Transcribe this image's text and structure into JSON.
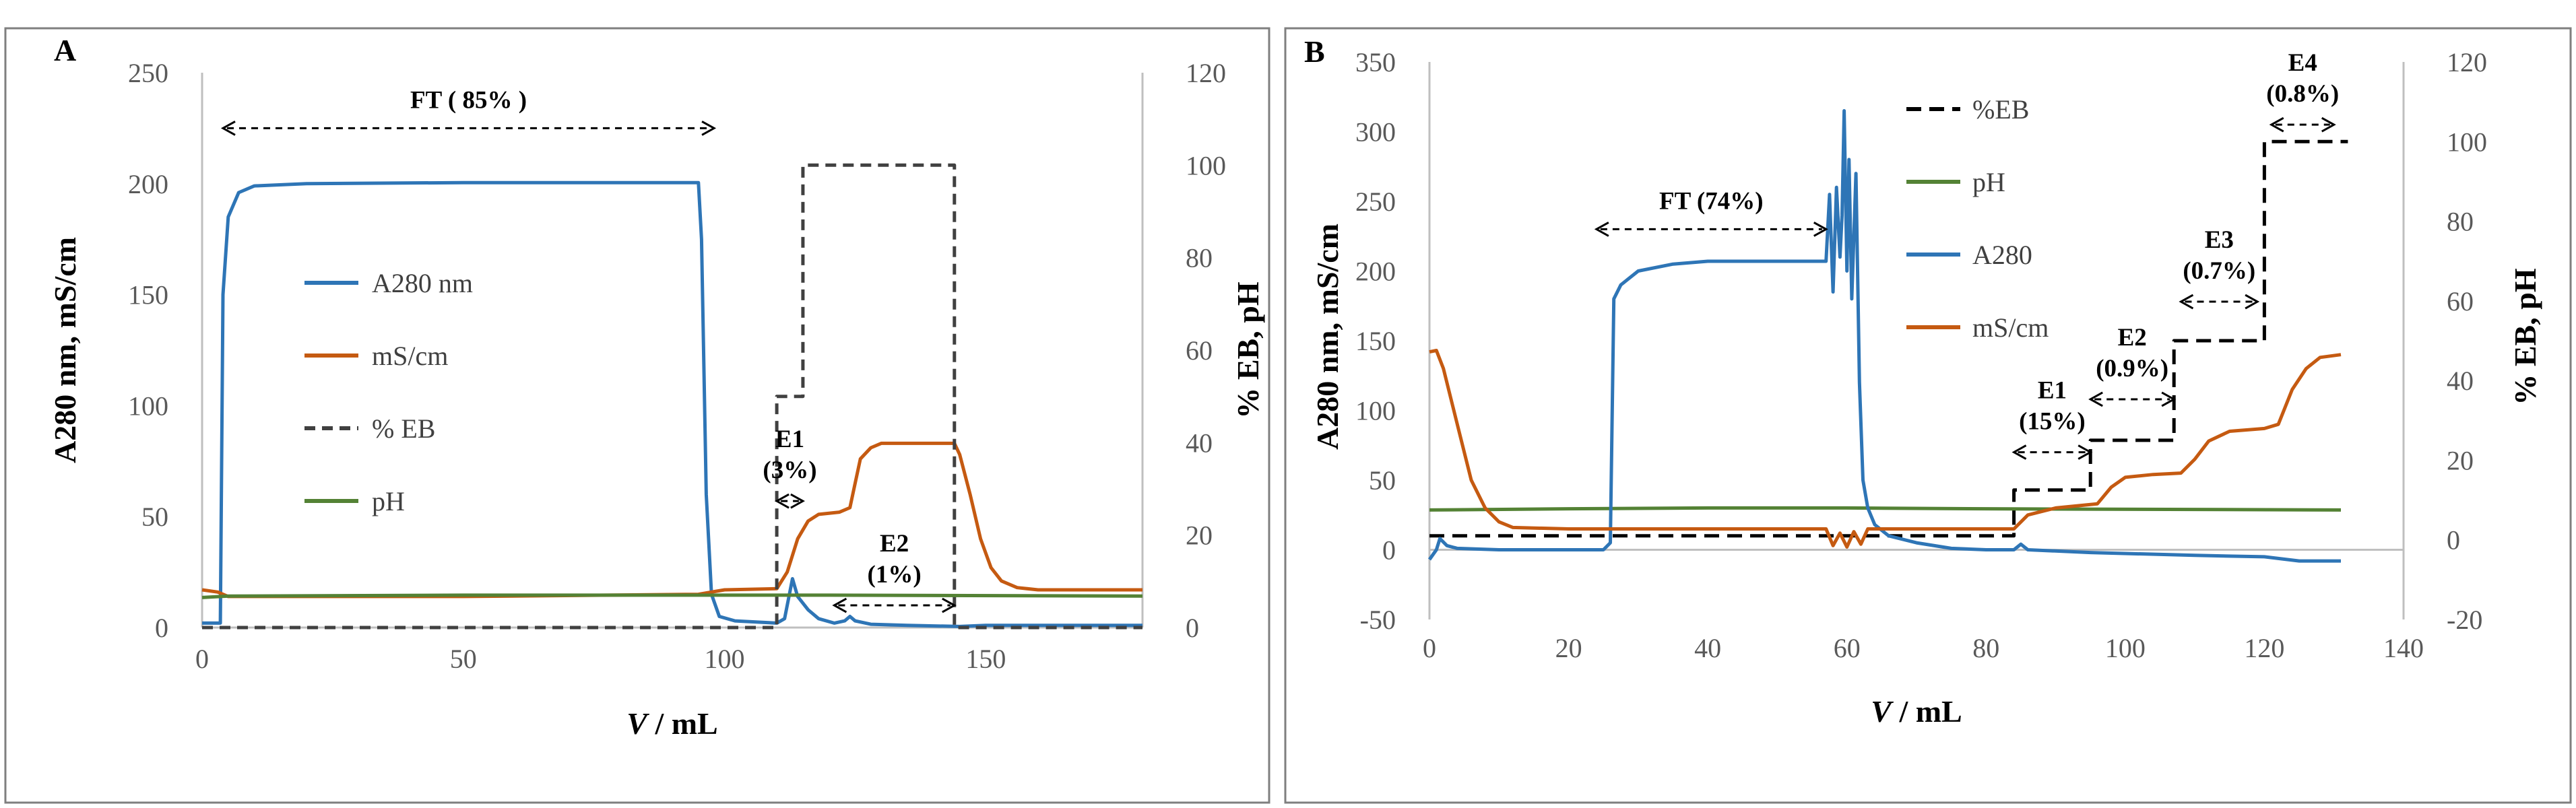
{
  "chart_data": [
    {
      "panel": "A",
      "type": "line",
      "xlabel_italic": "V",
      "xlabel_rest": " / mL",
      "ylabel": "A280 nm, mS/cm",
      "y2label": "% EB, pH",
      "xlim": [
        0,
        180
      ],
      "ylim": [
        0,
        250
      ],
      "y2lim": [
        0,
        120
      ],
      "xticks": [
        0,
        50,
        100,
        150
      ],
      "yticks": [
        0,
        50,
        100,
        150,
        200,
        250
      ],
      "y2ticks": [
        0,
        20,
        40,
        60,
        80,
        100,
        120
      ],
      "legend": [
        "A280 nm",
        "mS/cm",
        "% EB",
        "pH"
      ],
      "series": [
        {
          "name": "A280 nm",
          "axis": "left",
          "color": "#2e75b6",
          "style": "solid",
          "points": [
            [
              0,
              2
            ],
            [
              3,
              2
            ],
            [
              3.5,
              2
            ],
            [
              4,
              150
            ],
            [
              5,
              185
            ],
            [
              7,
              196
            ],
            [
              10,
              199
            ],
            [
              20,
              200
            ],
            [
              50,
              200.5
            ],
            [
              95,
              200.5
            ],
            [
              95.6,
              175
            ],
            [
              96.5,
              60
            ],
            [
              97.5,
              15
            ],
            [
              99,
              5
            ],
            [
              102,
              3
            ],
            [
              110,
              2
            ],
            [
              111.5,
              4
            ],
            [
              113,
              22
            ],
            [
              114,
              14
            ],
            [
              116,
              8
            ],
            [
              118,
              4
            ],
            [
              121,
              2
            ],
            [
              123,
              3
            ],
            [
              124,
              5
            ],
            [
              125,
              3
            ],
            [
              128,
              1.5
            ],
            [
              135,
              1
            ],
            [
              145,
              0.5
            ],
            [
              150,
              1
            ],
            [
              180,
              1
            ]
          ]
        },
        {
          "name": "mS/cm",
          "axis": "left",
          "color": "#c55a11",
          "style": "solid",
          "points": [
            [
              0,
              17
            ],
            [
              3,
              16
            ],
            [
              5,
              14
            ],
            [
              10,
              14
            ],
            [
              50,
              14
            ],
            [
              95,
              15
            ],
            [
              100,
              17
            ],
            [
              110,
              17.5
            ],
            [
              112,
              25
            ],
            [
              114,
              40
            ],
            [
              116,
              48
            ],
            [
              118,
              51
            ],
            [
              122,
              52
            ],
            [
              124,
              54
            ],
            [
              125,
              65
            ],
            [
              126,
              76
            ],
            [
              128,
              81
            ],
            [
              130,
              83
            ],
            [
              144,
              83
            ],
            [
              145,
              78
            ],
            [
              147,
              60
            ],
            [
              149,
              40
            ],
            [
              151,
              27
            ],
            [
              153,
              21
            ],
            [
              156,
              18
            ],
            [
              160,
              17
            ],
            [
              180,
              17
            ]
          ]
        },
        {
          "name": "% EB",
          "axis": "right",
          "color": "#404040",
          "style": "dash",
          "points": [
            [
              0,
              0
            ],
            [
              110,
              0
            ],
            [
              110,
              25
            ],
            [
              110,
              50
            ],
            [
              115,
              50
            ],
            [
              115,
              75
            ],
            [
              115,
              100
            ],
            [
              144,
              100
            ],
            [
              144,
              0
            ],
            [
              180,
              0
            ]
          ]
        },
        {
          "name": "pH",
          "axis": "right",
          "color": "#548235",
          "style": "solid",
          "points": [
            [
              0,
              6.5
            ],
            [
              5,
              6.8
            ],
            [
              50,
              7
            ],
            [
              100,
              7
            ],
            [
              120,
              7
            ],
            [
              180,
              6.8
            ]
          ]
        }
      ],
      "annotations": [
        {
          "label": "FT ( 85% )",
          "arrow": "double",
          "x_from": 4,
          "x_to": 98,
          "y": 225
        },
        {
          "label": "E1",
          "label2": "(3%)",
          "arrow": "double",
          "x_from": 110,
          "x_to": 115,
          "y": 57
        },
        {
          "label": "E2",
          "label2": "(1%)",
          "arrow": "double",
          "x_from": 121,
          "x_to": 144,
          "y": 10
        }
      ]
    },
    {
      "panel": "B",
      "type": "line",
      "xlabel_italic": "V",
      "xlabel_rest": " / mL",
      "ylabel": "A280 nm, mS/cm",
      "y2label": "% EB, pH",
      "xlim": [
        0,
        140
      ],
      "ylim": [
        -50,
        350
      ],
      "y2lim": [
        -20,
        120
      ],
      "xticks": [
        0,
        20,
        40,
        60,
        80,
        100,
        120,
        140
      ],
      "yticks": [
        -50,
        0,
        50,
        100,
        150,
        200,
        250,
        300,
        350
      ],
      "y2ticks": [
        -20,
        0,
        20,
        40,
        60,
        80,
        100,
        120
      ],
      "legend": [
        "%EB",
        "pH",
        "A280",
        "mS/cm"
      ],
      "series": [
        {
          "name": "%EB",
          "axis": "right",
          "color": "#000000",
          "style": "dash",
          "points": [
            [
              0,
              1
            ],
            [
              84,
              1
            ],
            [
              84,
              12.5
            ],
            [
              95,
              12.5
            ],
            [
              95,
              25
            ],
            [
              107,
              25
            ],
            [
              107,
              50
            ],
            [
              120,
              50
            ],
            [
              120,
              100
            ],
            [
              132,
              100
            ]
          ]
        },
        {
          "name": "pH",
          "axis": "right",
          "color": "#548235",
          "style": "solid",
          "points": [
            [
              0,
              7.5
            ],
            [
              20,
              7.8
            ],
            [
              40,
              8
            ],
            [
              60,
              8
            ],
            [
              80,
              7.8
            ],
            [
              131,
              7.5
            ]
          ]
        },
        {
          "name": "A280",
          "axis": "left",
          "color": "#2e75b6",
          "style": "solid",
          "points": [
            [
              0,
              -7
            ],
            [
              1,
              0
            ],
            [
              1.5,
              8
            ],
            [
              2.5,
              3
            ],
            [
              4,
              1
            ],
            [
              10,
              0
            ],
            [
              20,
              0
            ],
            [
              25,
              0
            ],
            [
              26,
              5
            ],
            [
              26.5,
              180
            ],
            [
              27.5,
              190
            ],
            [
              30,
              200
            ],
            [
              35,
              205
            ],
            [
              40,
              207
            ],
            [
              50,
              207
            ],
            [
              57,
              207
            ],
            [
              57.5,
              255
            ],
            [
              58,
              185
            ],
            [
              58.5,
              260
            ],
            [
              59,
              210
            ],
            [
              59.3,
              240
            ],
            [
              59.6,
              315
            ],
            [
              60,
              200
            ],
            [
              60.3,
              280
            ],
            [
              60.7,
              180
            ],
            [
              61.3,
              270
            ],
            [
              61.8,
              120
            ],
            [
              62.3,
              50
            ],
            [
              63,
              30
            ],
            [
              64,
              18
            ],
            [
              66,
              10
            ],
            [
              70,
              5
            ],
            [
              75,
              1
            ],
            [
              80,
              0
            ],
            [
              84,
              0
            ],
            [
              85,
              4
            ],
            [
              86,
              0
            ],
            [
              95,
              -2
            ],
            [
              110,
              -4
            ],
            [
              120,
              -5
            ],
            [
              125,
              -8
            ],
            [
              131,
              -8
            ]
          ]
        },
        {
          "name": "mS/cm",
          "axis": "left",
          "color": "#c55a11",
          "style": "solid",
          "points": [
            [
              0,
              142
            ],
            [
              1,
              143
            ],
            [
              2,
              130
            ],
            [
              4,
              90
            ],
            [
              6,
              50
            ],
            [
              8,
              30
            ],
            [
              10,
              20
            ],
            [
              12,
              16
            ],
            [
              20,
              15
            ],
            [
              57,
              15
            ],
            [
              58,
              3
            ],
            [
              59,
              12
            ],
            [
              60,
              2
            ],
            [
              61,
              13
            ],
            [
              62,
              4
            ],
            [
              63,
              15
            ],
            [
              80,
              15
            ],
            [
              84,
              15
            ],
            [
              86,
              25
            ],
            [
              90,
              30
            ],
            [
              96,
              33
            ],
            [
              98,
              45
            ],
            [
              100,
              52
            ],
            [
              104,
              54
            ],
            [
              108,
              55
            ],
            [
              110,
              65
            ],
            [
              112,
              78
            ],
            [
              115,
              85
            ],
            [
              120,
              87
            ],
            [
              122,
              90
            ],
            [
              124,
              115
            ],
            [
              126,
              130
            ],
            [
              128,
              138
            ],
            [
              131,
              140
            ]
          ]
        }
      ],
      "annotations": [
        {
          "label": "FT (74%)",
          "arrow": "double",
          "x_from": 24,
          "x_to": 57,
          "y": 230
        },
        {
          "label": "E1",
          "label2": "(15%)",
          "arrow": "double",
          "x_from": 84,
          "x_to": 95,
          "y": 70
        },
        {
          "label": "E2",
          "label2": "(0.9%)",
          "arrow": "double",
          "x_from": 95,
          "x_to": 107,
          "y": 108
        },
        {
          "label": "E3",
          "label2": "(0.7%)",
          "arrow": "double",
          "x_from": 108,
          "x_to": 119,
          "y": 178
        },
        {
          "label": "E4",
          "label2": "(0.8%)",
          "arrow": "double",
          "x_from": 121,
          "x_to": 130,
          "y": 305
        }
      ]
    }
  ]
}
